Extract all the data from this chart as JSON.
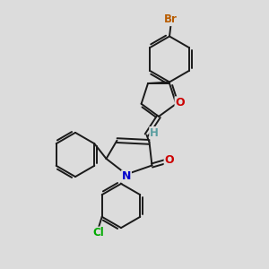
{
  "background_color": "#dcdcdc",
  "bond_color": "#1a1a1a",
  "atom_colors": {
    "Br": "#b85c00",
    "O": "#cc0000",
    "N": "#0000cc",
    "Cl": "#00aa00",
    "H": "#5a9ea0",
    "C": "#1a1a1a"
  },
  "figsize": [
    3.0,
    3.0
  ],
  "dpi": 100
}
